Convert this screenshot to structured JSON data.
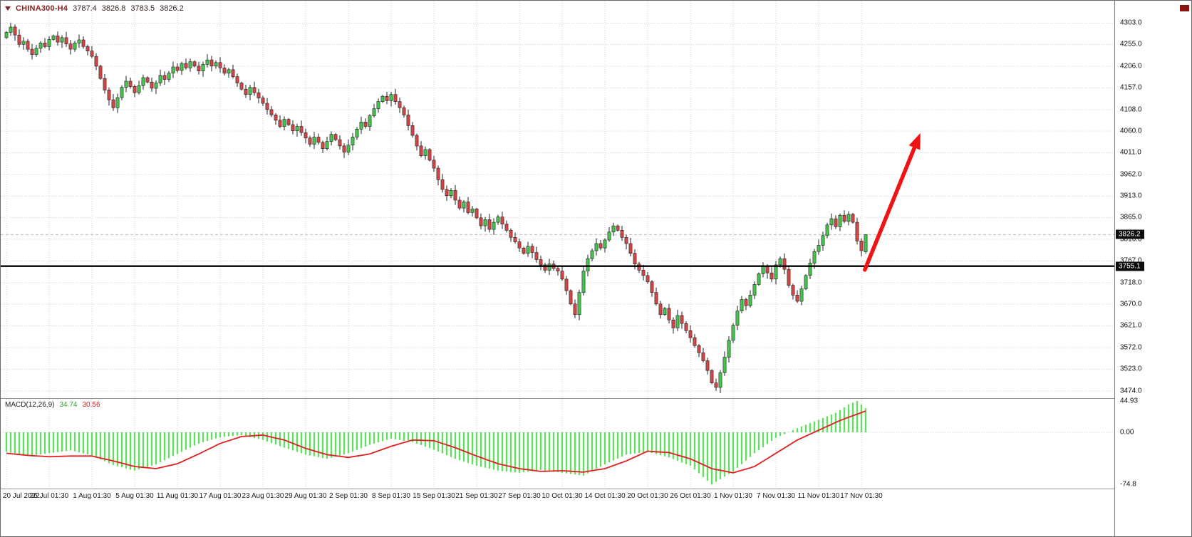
{
  "header": {
    "symbol": "CHINA300-H4",
    "open": "3787.4",
    "high": "3826.8",
    "low": "3783.5",
    "close": "3826.2"
  },
  "macd_label": {
    "name": "MACD(12,26,9)",
    "main": "34.74",
    "signal": "30.56"
  },
  "price_axis": {
    "labels": [
      "4303.0",
      "4255.0",
      "4206.0",
      "4157.0",
      "4108.0",
      "4060.0",
      "4011.0",
      "3962.0",
      "3913.0",
      "3865.0",
      "3816.0",
      "3767.0",
      "3718.0",
      "3670.0",
      "3621.0",
      "3572.0",
      "3523.0",
      "3474.0"
    ],
    "current_price_tag": "3826.2",
    "line_price_tag": "3755.1"
  },
  "macd_axis": {
    "labels": [
      "44.93",
      "0.00",
      "-74.8"
    ]
  },
  "time_axis": {
    "labels": [
      "20 Jul 2022",
      "26 Jul 01:30",
      "1 Aug 01:30",
      "5 Aug 01:30",
      "11 Aug 01:30",
      "17 Aug 01:30",
      "23 Aug 01:30",
      "29 Aug 01:30",
      "2 Sep 01:30",
      "8 Sep 01:30",
      "15 Sep 01:30",
      "21 Sep 01:30",
      "27 Sep 01:30",
      "10 Oct 01:30",
      "14 Oct 01:30",
      "20 Oct 01:30",
      "26 Oct 01:30",
      "1 Nov 01:30",
      "7 Nov 01:30",
      "11 Nov 01:30",
      "17 Nov 01:30"
    ]
  },
  "overlays": {
    "hline_price": 3755.1,
    "bid_price": 3826.2,
    "arrow": {
      "from_bar": 200.8,
      "from_price": 3747,
      "to_bar": 213.8,
      "to_price": 4055
    }
  },
  "colors": {
    "up": "#44c64c",
    "down": "#d64545",
    "wick": "#1f1f1f",
    "grid": "#d2d2d2",
    "macd_hist": "#63de63",
    "macd_signal": "#e01f1f",
    "hline": "#000000",
    "arrow": "#ef1313",
    "tag_bg": "#0d0d0d",
    "tag_text": "#ffffff"
  },
  "chart_data": [
    {
      "type": "candlestick",
      "symbol": "CHINA300",
      "timeframe": "H4",
      "ylim": [
        3457.8,
        4353.3
      ],
      "x_labels_every": 10,
      "first_open": 4270,
      "closes": [
        4282,
        4294,
        4276,
        4255,
        4262,
        4244,
        4232,
        4246,
        4258,
        4250,
        4266,
        4274,
        4260,
        4270,
        4256,
        4244,
        4258,
        4265,
        4250,
        4240,
        4228,
        4206,
        4178,
        4152,
        4130,
        4112,
        4135,
        4158,
        4172,
        4160,
        4146,
        4162,
        4180,
        4170,
        4156,
        4168,
        4185,
        4176,
        4190,
        4204,
        4196,
        4212,
        4202,
        4216,
        4206,
        4195,
        4210,
        4220,
        4206,
        4214,
        4202,
        4190,
        4198,
        4182,
        4168,
        4154,
        4142,
        4158,
        4146,
        4134,
        4122,
        4108,
        4096,
        4084,
        4070,
        4086,
        4074,
        4060,
        4070,
        4056,
        4044,
        4030,
        4046,
        4034,
        4020,
        4036,
        4052,
        4040,
        4026,
        4012,
        4028,
        4046,
        4064,
        4080,
        4070,
        4094,
        4110,
        4126,
        4138,
        4128,
        4142,
        4126,
        4112,
        4096,
        4072,
        4050,
        4026,
        4004,
        4018,
        3994,
        3976,
        3950,
        3928,
        3914,
        3926,
        3904,
        3886,
        3900,
        3876,
        3884,
        3864,
        3846,
        3860,
        3838,
        3854,
        3866,
        3850,
        3836,
        3820,
        3810,
        3796,
        3784,
        3800,
        3786,
        3770,
        3758,
        3746,
        3760,
        3750,
        3744,
        3726,
        3700,
        3670,
        3646,
        3696,
        3744,
        3772,
        3790,
        3806,
        3796,
        3814,
        3832,
        3846,
        3836,
        3820,
        3806,
        3784,
        3760,
        3746,
        3734,
        3720,
        3696,
        3670,
        3646,
        3660,
        3634,
        3616,
        3644,
        3626,
        3610,
        3594,
        3576,
        3560,
        3542,
        3520,
        3492,
        3482,
        3515,
        3550,
        3588,
        3622,
        3654,
        3680,
        3666,
        3690,
        3714,
        3738,
        3754,
        3740,
        3726,
        3758,
        3772,
        3748,
        3712,
        3690,
        3676,
        3704,
        3734,
        3762,
        3788,
        3802,
        3824,
        3848,
        3862,
        3844,
        3870,
        3856,
        3872,
        3854,
        3812,
        3790,
        3826.2
      ],
      "last_candle": {
        "open": 3787.4,
        "high": 3826.8,
        "low": 3783.5,
        "close": 3826.2
      }
    },
    {
      "type": "bar",
      "name": "MACD(12,26,9)",
      "ylim": [
        -80.6,
        48
      ],
      "current_main": 34.74,
      "current_signal": 30.56,
      "hist_points": [
        [
          0,
          -28
        ],
        [
          5,
          -34
        ],
        [
          10,
          -30
        ],
        [
          15,
          -26
        ],
        [
          20,
          -33
        ],
        [
          25,
          -47
        ],
        [
          30,
          -55
        ],
        [
          35,
          -46
        ],
        [
          40,
          -31
        ],
        [
          45,
          -16
        ],
        [
          50,
          -7
        ],
        [
          55,
          -4
        ],
        [
          60,
          -11
        ],
        [
          65,
          -22
        ],
        [
          70,
          -32
        ],
        [
          75,
          -38
        ],
        [
          80,
          -30
        ],
        [
          85,
          -18
        ],
        [
          90,
          -9
        ],
        [
          95,
          -14
        ],
        [
          100,
          -25
        ],
        [
          105,
          -38
        ],
        [
          110,
          -48
        ],
        [
          115,
          -55
        ],
        [
          120,
          -58
        ],
        [
          125,
          -54
        ],
        [
          130,
          -58
        ],
        [
          135,
          -62
        ],
        [
          140,
          -46
        ],
        [
          145,
          -32
        ],
        [
          150,
          -28
        ],
        [
          155,
          -36
        ],
        [
          160,
          -48
        ],
        [
          165,
          -74.8
        ],
        [
          170,
          -56
        ],
        [
          175,
          -30
        ],
        [
          180,
          -8
        ],
        [
          185,
          6
        ],
        [
          190,
          18
        ],
        [
          194,
          28
        ],
        [
          197,
          40
        ],
        [
          199,
          44.93
        ],
        [
          201,
          34.74
        ]
      ],
      "signal_points": [
        [
          0,
          -30
        ],
        [
          5,
          -33
        ],
        [
          10,
          -35
        ],
        [
          15,
          -34
        ],
        [
          20,
          -34
        ],
        [
          25,
          -41
        ],
        [
          30,
          -49
        ],
        [
          35,
          -52
        ],
        [
          40,
          -45
        ],
        [
          45,
          -31
        ],
        [
          50,
          -16
        ],
        [
          55,
          -6
        ],
        [
          60,
          -4
        ],
        [
          65,
          -11
        ],
        [
          70,
          -23
        ],
        [
          75,
          -32
        ],
        [
          80,
          -36
        ],
        [
          85,
          -31
        ],
        [
          90,
          -20
        ],
        [
          95,
          -11
        ],
        [
          100,
          -12
        ],
        [
          105,
          -22
        ],
        [
          110,
          -34
        ],
        [
          115,
          -45
        ],
        [
          120,
          -52
        ],
        [
          125,
          -56
        ],
        [
          130,
          -55
        ],
        [
          135,
          -57
        ],
        [
          140,
          -52
        ],
        [
          145,
          -41
        ],
        [
          150,
          -27
        ],
        [
          155,
          -29
        ],
        [
          160,
          -38
        ],
        [
          165,
          -52
        ],
        [
          170,
          -58
        ],
        [
          175,
          -49
        ],
        [
          180,
          -30
        ],
        [
          185,
          -11
        ],
        [
          190,
          3
        ],
        [
          195,
          17
        ],
        [
          201,
          30.56
        ]
      ]
    }
  ]
}
